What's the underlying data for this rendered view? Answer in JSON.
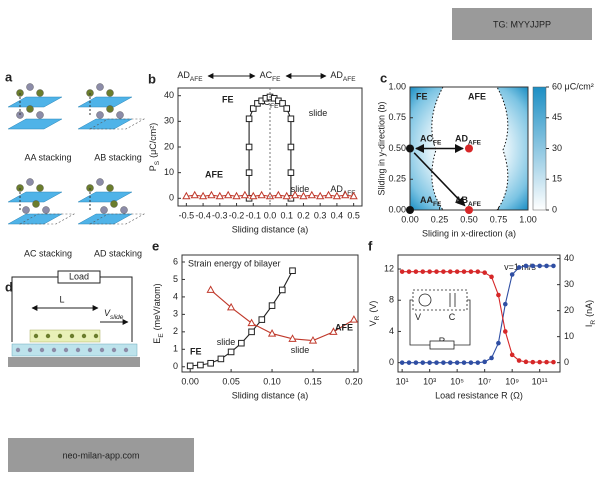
{
  "watermarks": [
    "TG: MYYJJPP",
    "neo-milan-app.com"
  ],
  "panel_a": {
    "label": "a",
    "captions": [
      "AA stacking",
      "AB stacking",
      "AC stacking",
      "AD stacking"
    ]
  },
  "panel_d": {
    "label": "d",
    "load": "Load",
    "length": "L",
    "velocity": {
      "text": "V",
      "sub": "slide"
    }
  },
  "chart_data": [
    {
      "type": "line",
      "panel": "b",
      "xlabel": "Sliding distance (a)",
      "ylabel": {
        "main": "P",
        "sub": "S",
        "unit": "(μC/cm²)"
      },
      "top_labels": [
        {
          "text": "AD",
          "sub": "AFE"
        },
        {
          "text": "AC",
          "sub": "FE"
        },
        {
          "text": "AD",
          "sub": "AFE"
        }
      ],
      "annotations": [
        {
          "text": "AC",
          "sub": "FE"
        },
        {
          "text": "slide"
        },
        {
          "text": "slide"
        },
        {
          "text": "AD",
          "sub": "AFE"
        }
      ],
      "xlim": [
        -0.55,
        0.55
      ],
      "xticks": [
        -0.5,
        -0.4,
        -0.3,
        -0.2,
        -0.1,
        {
          "value": 0,
          "label": "0.0"
        },
        0.1,
        0.2,
        0.3,
        0.4,
        0.5
      ],
      "ylim": [
        -3,
        43
      ],
      "yticks": [
        0,
        10,
        20,
        30,
        40
      ],
      "series": [
        {
          "name": "FE",
          "color": "#222222",
          "marker": "square",
          "x": [
            -0.125,
            -0.125,
            -0.125,
            -0.125,
            -0.1,
            -0.075,
            -0.05,
            -0.025,
            0,
            0.025,
            0.05,
            0.075,
            0.1,
            0.125,
            0.125,
            0.125,
            0.125
          ],
          "values": [
            0,
            10,
            20,
            31,
            35,
            37,
            38,
            39,
            39.5,
            39,
            38,
            37,
            35,
            31,
            20,
            10,
            0
          ]
        },
        {
          "name": "AFE",
          "color": "#c0392b",
          "marker": "triangle",
          "x": [
            -0.5,
            -0.45,
            -0.4,
            -0.35,
            -0.3,
            -0.25,
            -0.2,
            -0.15,
            -0.1,
            -0.05,
            0,
            0.05,
            0.1,
            0.15,
            0.2,
            0.25,
            0.3,
            0.35,
            0.4,
            0.45,
            0.5
          ],
          "values": [
            0.8,
            1.2,
            0.8,
            1.2,
            0.8,
            1.2,
            0.8,
            1.2,
            0.8,
            1.2,
            0.8,
            1.2,
            0.8,
            1.2,
            0.8,
            1.2,
            0.8,
            1.2,
            0.8,
            1.2,
            0.8
          ]
        }
      ]
    },
    {
      "type": "scatter",
      "panel": "c",
      "xlabel": "Sliding in x-direction (a)",
      "ylabel": "Sliding in y-direction (b)",
      "region_labels": [
        "FE",
        "AFE"
      ],
      "xlim": [
        0,
        1
      ],
      "xticks": [
        {
          "value": 0,
          "label": "0.00"
        },
        0.25,
        {
          "value": 0.5,
          "label": "0.50"
        },
        0.75,
        {
          "value": 1,
          "label": "1.00"
        }
      ],
      "ylim": [
        0,
        1
      ],
      "yticks": [
        {
          "value": 0,
          "label": "0.00"
        },
        0.25,
        {
          "value": 0.5,
          "label": "0.50"
        },
        0.75,
        {
          "value": 1,
          "label": "1.00"
        }
      ],
      "colorbar": {
        "lim": [
          0,
          60
        ],
        "ticks": [
          0,
          15,
          30,
          45,
          {
            "value": 60,
            "label": "60 μC/cm²"
          }
        ]
      },
      "series": [
        {
          "color": "#111111",
          "x": [
            0,
            0
          ],
          "values": [
            0.5,
            0
          ],
          "labels": [
            {
              "text": "AC",
              "sub": "FE"
            },
            {
              "text": "AA",
              "sub": "FE"
            }
          ]
        },
        {
          "color": "#d62728",
          "x": [
            0.5,
            0.5
          ],
          "values": [
            0.5,
            0
          ],
          "labels": [
            {
              "text": "AD",
              "sub": "AFE"
            },
            {
              "text": "AB",
              "sub": "AFE"
            }
          ]
        }
      ]
    },
    {
      "type": "line",
      "panel": "e",
      "title": "Strain energy of bilayer",
      "xlabel": "Sliding distance (a)",
      "ylabel": {
        "main": "E",
        "sub": "E",
        "unit": "(meV/atom)"
      },
      "annotations": [
        {
          "text": "slide"
        },
        {
          "text": "slide"
        }
      ],
      "xlim": [
        -0.01,
        0.205
      ],
      "xticks": [
        {
          "value": 0,
          "label": "0.00"
        },
        0.05,
        {
          "value": 0.1,
          "label": "0.10"
        },
        0.15,
        {
          "value": 0.2,
          "label": "0.20"
        }
      ],
      "ylim": [
        -0.3,
        6.4
      ],
      "yticks": [
        0,
        1,
        2,
        3,
        4,
        5,
        6
      ],
      "series": [
        {
          "name": "FE",
          "color": "#222222",
          "marker": "square",
          "x": [
            0,
            0.0125,
            0.025,
            0.0375,
            0.05,
            0.0625,
            0.075,
            0.0875,
            0.1,
            0.1125,
            0.125
          ],
          "values": [
            0.05,
            0.1,
            0.2,
            0.45,
            0.85,
            1.35,
            2.0,
            2.7,
            3.5,
            4.4,
            5.5
          ]
        },
        {
          "name": "AFE",
          "color": "#c0392b",
          "marker": "triangle",
          "x": [
            0.025,
            0.05,
            0.075,
            0.1,
            0.125,
            0.15,
            0.175,
            0.2
          ],
          "values": [
            4.4,
            3.4,
            2.5,
            1.9,
            1.6,
            1.5,
            2.0,
            2.7
          ]
        }
      ]
    },
    {
      "type": "line",
      "panel": "f",
      "log_x": true,
      "xlabel": "Load resistance R (Ω)",
      "ylabel": {
        "main": "V",
        "sub": "R",
        "unit": "(V)"
      },
      "y2label": {
        "main": "I",
        "sub": "R",
        "unit": "(nA)"
      },
      "annotations": [
        {
          "text": "v=1 m/s"
        },
        {
          "text": "V"
        },
        {
          "text": "C"
        },
        {
          "text": "R"
        }
      ],
      "xlim": [
        5,
        3000000000000.0
      ],
      "xticks": [
        {
          "value": 10,
          "label": "10¹"
        },
        {
          "value": 1000,
          "label": "10³"
        },
        {
          "value": 100000,
          "label": "10⁵"
        },
        {
          "value": 10000000,
          "label": "10⁷"
        },
        {
          "value": 1000000000,
          "label": "10⁹"
        },
        {
          "value": 100000000000,
          "label": "10¹¹"
        }
      ],
      "ylim": [
        -1.2,
        13.8
      ],
      "yticks": [
        0,
        4,
        8,
        12
      ],
      "y2lim": [
        -3.6,
        41.4
      ],
      "y2ticks": [
        0,
        10,
        20,
        30,
        40
      ],
      "series": [
        {
          "color": "#2f4ea3",
          "marker": "circle",
          "x": [
            10.0,
            31.6,
            100.0,
            316.0,
            1000.0,
            3160.0,
            10000.0,
            31600.0,
            100000.0,
            316000.0,
            1000000.0,
            3160000.0,
            10000000.0,
            31600000.0,
            100000000.0,
            316000000.0,
            1000000000.0,
            3160000000.0,
            10000000000.0,
            31600000000.0,
            100000000000.0,
            316000000000.0,
            1000000000000.0
          ],
          "values": [
            0,
            0,
            0,
            0,
            0,
            0,
            0,
            0,
            0,
            0,
            0,
            0,
            0.1,
            0.6,
            2.5,
            7.5,
            11.3,
            12.2,
            12.4,
            12.4,
            12.4,
            12.4,
            12.4
          ]
        },
        {
          "color": "#d62728",
          "marker": "circle",
          "axis": "y2",
          "x": [
            10.0,
            31.6,
            100.0,
            316.0,
            1000.0,
            3160.0,
            10000.0,
            31600.0,
            100000.0,
            316000.0,
            1000000.0,
            3160000.0,
            10000000.0,
            31600000.0,
            100000000.0,
            316000000.0,
            1000000000.0,
            3160000000.0,
            10000000000.0,
            31600000000.0,
            100000000000.0,
            316000000000.0,
            1000000000000.0
          ],
          "values": [
            35,
            35,
            35,
            35,
            35,
            35,
            35,
            35,
            35,
            35,
            35,
            35,
            34.6,
            33,
            26,
            12,
            3,
            0.8,
            0.3,
            0.2,
            0.2,
            0.2,
            0.2
          ]
        }
      ]
    }
  ]
}
